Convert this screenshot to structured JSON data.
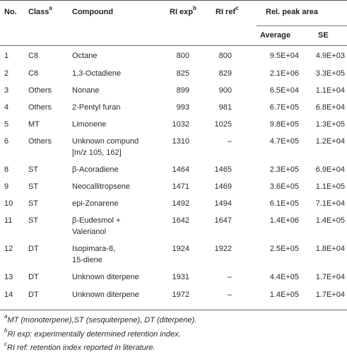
{
  "headers": {
    "no": "No.",
    "class": "Class",
    "class_sup": "a",
    "compound": "Compound",
    "ri_exp": "RI exp",
    "ri_exp_sup": "b",
    "ri_ref": "RI ref",
    "ri_ref_sup": "c",
    "rel_peak_area": "Rel. peak area",
    "average": "Average",
    "se": "SE"
  },
  "rows": [
    {
      "no": "1",
      "class": "C8",
      "compound": [
        "Octane"
      ],
      "ri_exp": "800",
      "ri_ref": "800",
      "average": "9.5E+04",
      "se": "4.9E+03"
    },
    {
      "no": "2",
      "class": "C8",
      "compound": [
        "1,3-Octadiene"
      ],
      "ri_exp": "825",
      "ri_ref": "829",
      "average": "2.1E+06",
      "se": "3.3E+05"
    },
    {
      "no": "3",
      "class": "Others",
      "compound": [
        "Nonane"
      ],
      "ri_exp": "899",
      "ri_ref": "900",
      "average": "6.5E+04",
      "se": "1.1E+04"
    },
    {
      "no": "4",
      "class": "Others",
      "compound": [
        "2-Pentyl furan"
      ],
      "ri_exp": "993",
      "ri_ref": "981",
      "average": "6.7E+05",
      "se": "6.8E+04"
    },
    {
      "no": "5",
      "class": "MT",
      "compound": [
        "Limonene"
      ],
      "ri_exp": "1032",
      "ri_ref": "1025",
      "average": "9.8E+05",
      "se": "1.3E+05"
    },
    {
      "no": "6",
      "class": "Others",
      "compound": [
        "Unknown compund",
        "[m/z 105, 162]"
      ],
      "ri_exp": "1310",
      "ri_ref": "–",
      "average": "4.7E+05",
      "se": "1.2E+04"
    },
    {
      "no": "8",
      "class": "ST",
      "compound": [
        "β-Acoradiene"
      ],
      "ri_exp": "1464",
      "ri_ref": "1465",
      "average": "2.3E+05",
      "se": "6.9E+04"
    },
    {
      "no": "9",
      "class": "ST",
      "compound": [
        "Neocallitropsene"
      ],
      "ri_exp": "1471",
      "ri_ref": "1469",
      "average": "3.6E+05",
      "se": "1.1E+05"
    },
    {
      "no": "10",
      "class": "ST",
      "compound": [
        "epi-Zonarene"
      ],
      "ri_exp": "1492",
      "ri_ref": "1494",
      "average": "6.1E+05",
      "se": "7.1E+04"
    },
    {
      "no": "11",
      "class": "ST",
      "compound": [
        "β-Eudesmol +",
        "Valerianol"
      ],
      "ri_exp": "1642",
      "ri_ref": "1647",
      "average": "1.4E+06",
      "se": "1.4E+05"
    },
    {
      "no": "12",
      "class": "DT",
      "compound": [
        "Isopimara-8,",
        "15-diene"
      ],
      "ri_exp": "1924",
      "ri_ref": "1922",
      "average": "2.5E+05",
      "se": "1.8E+04"
    },
    {
      "no": "13",
      "class": "DT",
      "compound": [
        "Unknown diterpene"
      ],
      "ri_exp": "1931",
      "ri_ref": "–",
      "average": "4.4E+05",
      "se": "1.7E+04"
    },
    {
      "no": "14",
      "class": "DT",
      "compound": [
        "Unknown diterpene"
      ],
      "ri_exp": "1972",
      "ri_ref": "–",
      "average": "1.4E+05",
      "se": "1.7E+04"
    }
  ],
  "notes": [
    {
      "sup": "a",
      "text": "MT (monoterpene),ST (sesquiterpene), DT (diterpene)."
    },
    {
      "sup": "b",
      "text": "RI exp: experimentally determined retention index."
    },
    {
      "sup": "c",
      "text": "RI ref: retention index reported in literature."
    }
  ]
}
